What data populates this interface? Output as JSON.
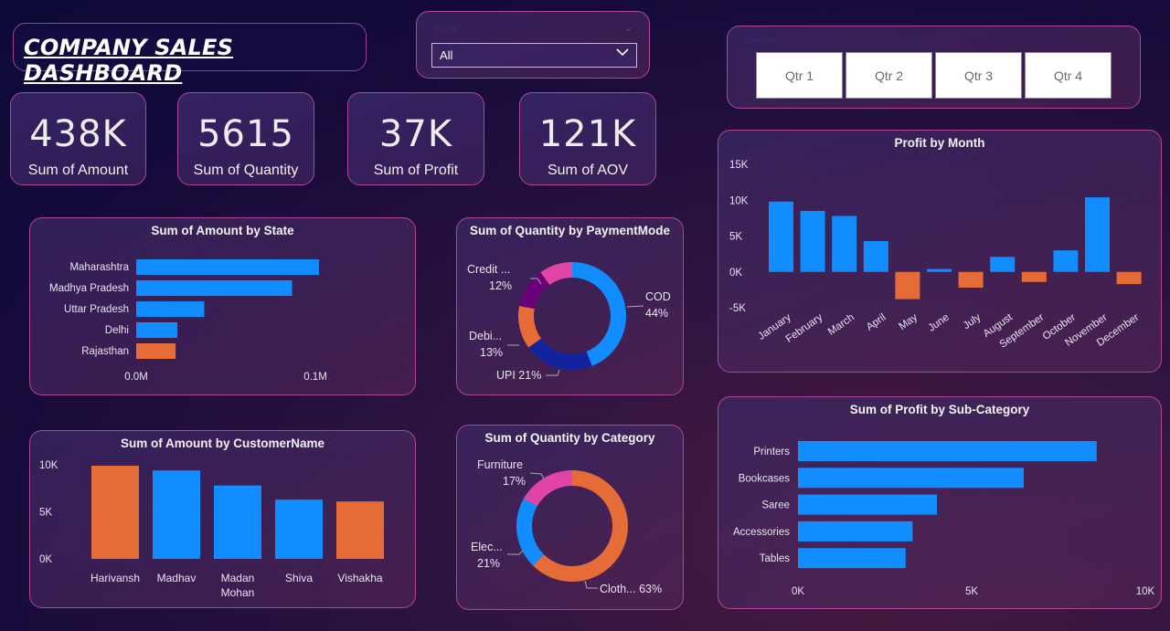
{
  "header": {
    "title": "COMPANY SALES DASHBOARD"
  },
  "state_slicer": {
    "label": "State",
    "selected": "All"
  },
  "quarter_slicer": {
    "label": "Quarter",
    "options": [
      "Qtr 1",
      "Qtr 2",
      "Qtr 3",
      "Qtr 4"
    ]
  },
  "kpis": [
    {
      "value": "438K",
      "label": "Sum of Amount"
    },
    {
      "value": "5615",
      "label": "Sum of Quantity"
    },
    {
      "value": "37K",
      "label": "Sum of Profit"
    },
    {
      "value": "121K",
      "label": "Sum of AOV"
    }
  ],
  "colors": {
    "blue": "#118dff",
    "orange": "#e66c37",
    "navy": "#12239e",
    "purple": "#6b007b",
    "pink": "#e044a7"
  },
  "chart_data": [
    {
      "id": "amount_by_state",
      "type": "bar",
      "orientation": "horizontal",
      "title": "Sum of Amount by State",
      "categories": [
        "Maharashtra",
        "Madhya Pradesh",
        "Uttar Pradesh",
        "Delhi",
        "Rajasthan"
      ],
      "values": [
        102000,
        87000,
        38000,
        23000,
        22000
      ],
      "highlight": [
        "blue",
        "blue",
        "blue",
        "blue",
        "orange"
      ],
      "xticks": [
        "0.0M",
        "0.1M"
      ],
      "xlim": [
        0,
        0.1
      ]
    },
    {
      "id": "quantity_by_paymentmode",
      "type": "pie",
      "donut": true,
      "title": "Sum of Quantity by PaymentMode",
      "slices": [
        {
          "label": "COD",
          "display": "COD",
          "pct": 44,
          "color": "blue",
          "show": "44%"
        },
        {
          "label": "UPI",
          "display": "UPI 21%",
          "pct": 21,
          "color": "navy",
          "show": ""
        },
        {
          "label": "Debit Card",
          "display": "Debi...",
          "pct": 13,
          "color": "orange",
          "show": "13%"
        },
        {
          "label": "Credit Card",
          "display": "Credit ...",
          "pct": 12,
          "color": "purple",
          "show": "12%"
        },
        {
          "label": "",
          "display": "",
          "pct": 10,
          "color": "pink",
          "show": ""
        }
      ]
    },
    {
      "id": "profit_by_month",
      "type": "bar",
      "title": "Profit by Month",
      "categories": [
        "January",
        "February",
        "March",
        "April",
        "May",
        "June",
        "July",
        "August",
        "September",
        "October",
        "November",
        "December"
      ],
      "values": [
        9800,
        8500,
        7800,
        4300,
        -3800,
        400,
        -2200,
        2100,
        -1400,
        3000,
        10400,
        -1700
      ],
      "yticks": [
        "15K",
        "10K",
        "5K",
        "0K",
        "-5K"
      ],
      "ylim": [
        -5000,
        15000
      ]
    },
    {
      "id": "amount_by_customer",
      "type": "bar",
      "title": "Sum of Amount by CustomerName",
      "categories": [
        "Harivansh",
        "Madhav",
        "Madan Mohan",
        "Shiva",
        "Vishakha"
      ],
      "values": [
        9900,
        9400,
        7800,
        6300,
        6100
      ],
      "highlight": [
        "orange",
        "blue",
        "blue",
        "blue",
        "orange"
      ],
      "yticks": [
        "10K",
        "5K",
        "0K"
      ],
      "ylim": [
        0,
        10000
      ]
    },
    {
      "id": "quantity_by_category",
      "type": "pie",
      "donut": true,
      "title": "Sum of Quantity by Category",
      "slices": [
        {
          "label": "Clothing",
          "display": "Cloth... 63%",
          "pct": 63,
          "color": "orange"
        },
        {
          "label": "Electronics",
          "display": "Elec...",
          "pct": 21,
          "color": "blue",
          "show": "21%"
        },
        {
          "label": "Furniture",
          "display": "Furniture",
          "pct": 17,
          "color": "pink",
          "show": "17%"
        }
      ]
    },
    {
      "id": "profit_by_subcategory",
      "type": "bar",
      "orientation": "horizontal",
      "title": "Sum of Profit by Sub-Category",
      "categories": [
        "Printers",
        "Bookcases",
        "Saree",
        "Accessories",
        "Tables"
      ],
      "values": [
        8600,
        6500,
        4000,
        3300,
        3100
      ],
      "xticks": [
        "0K",
        "5K",
        "10K"
      ],
      "xlim": [
        0,
        10000
      ]
    }
  ]
}
